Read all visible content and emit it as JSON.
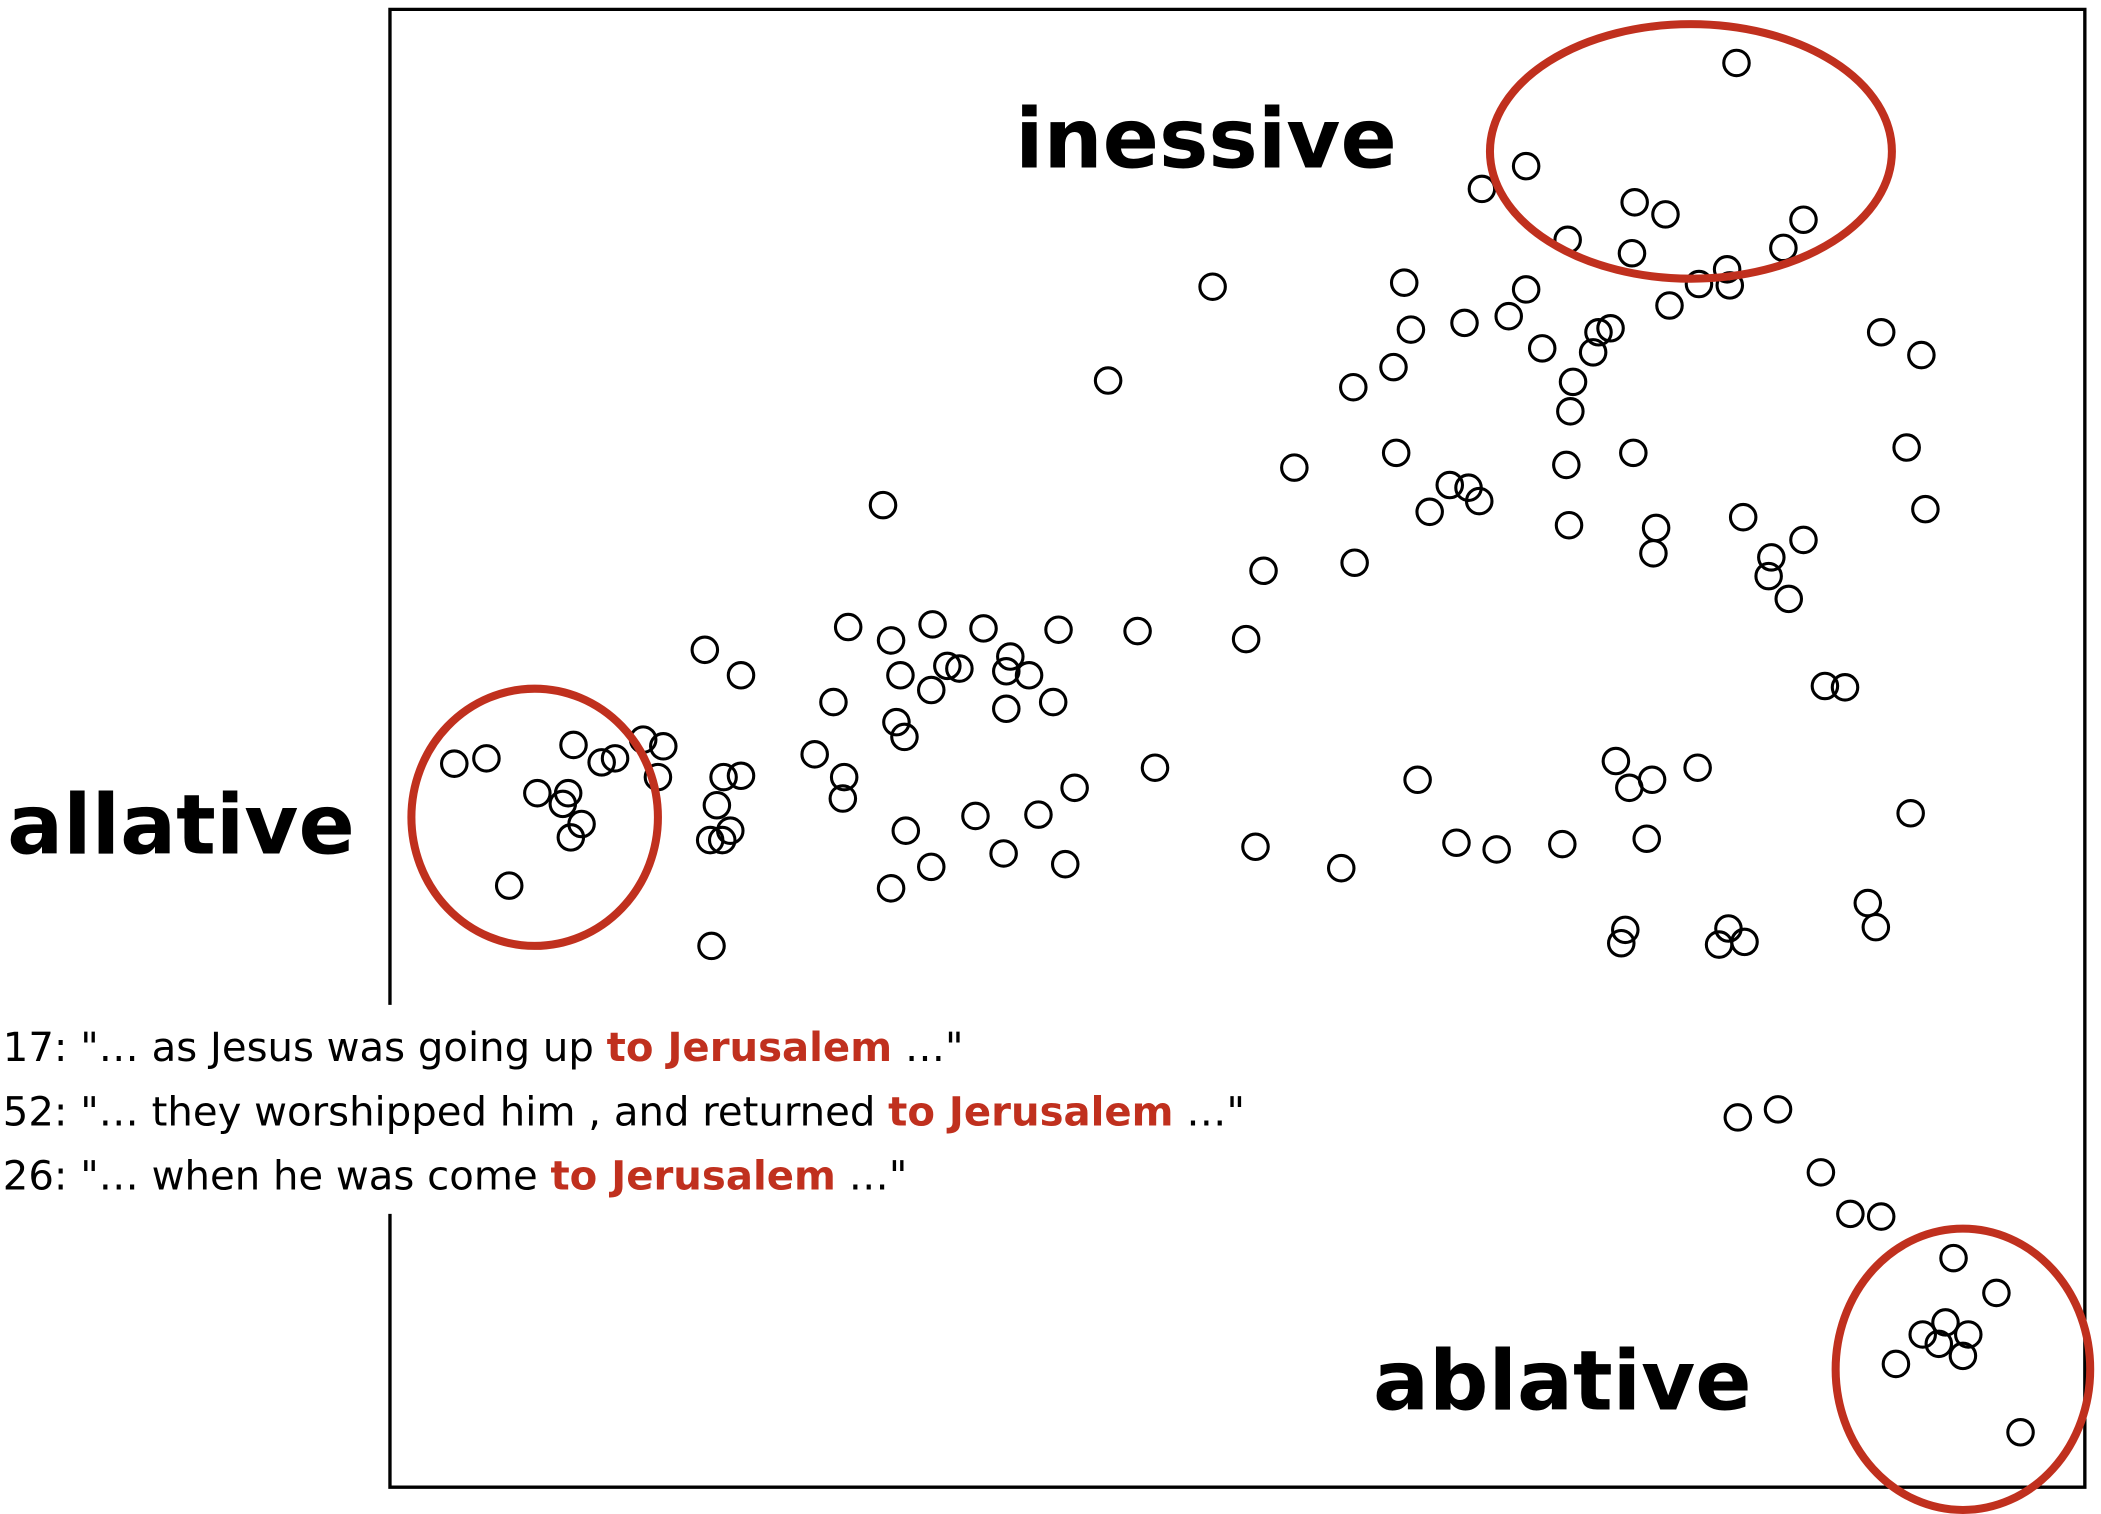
{
  "chart_data": {
    "type": "scatter",
    "xlim": [
      291,
      1556
    ],
    "ylim": [
      1110,
      7
    ],
    "x": [
      1296,
      1139,
      1106,
      1220,
      1243,
      1346,
      1170,
      1218,
      1331,
      1289,
      1268,
      1291,
      1246,
      905,
      1048,
      1139,
      1126,
      1053,
      1093,
      1151,
      1193,
      1202,
      1189,
      1040,
      1010,
      1174,
      1172,
      827,
      1404,
      1434,
      1423,
      1437,
      1042,
      966,
      1169,
      1219,
      1082,
      1096,
      1104,
      1067,
      1171,
      1236,
      1234,
      1301,
      1346,
      1322,
      1320,
      1335,
      1011,
      943,
      659,
      633,
      665,
      696,
      734,
      790,
      849,
      930,
      526,
      553,
      672,
      707,
      716,
      754,
      751,
      768,
      695,
      622,
      751,
      786,
      669,
      675,
      608,
      630,
      629,
      1362,
      1377,
      339,
      363,
      428,
      449,
      459,
      480,
      495,
      491,
      540,
      553,
      535,
      530,
      545,
      539,
      401,
      420,
      424,
      434,
      426,
      380,
      531,
      676,
      728,
      775,
      802,
      862,
      695,
      665,
      749,
      795,
      937,
      1001,
      1058,
      1087,
      1117,
      1166,
      1206,
      1216,
      1233,
      1267,
      1229,
      1426,
      1213,
      1210,
      1290,
      1283,
      1302,
      1394,
      1400,
      1297,
      1327,
      1359,
      1381,
      1404,
      1458,
      1490,
      1452,
      1435,
      1469,
      1447,
      1465,
      1415,
      1508
    ],
    "y": [
      47,
      124,
      141,
      151,
      160,
      164,
      179,
      189,
      185,
      201,
      212,
      213,
      228,
      214,
      211,
      216,
      236,
      246,
      241,
      260,
      248,
      245,
      263,
      274,
      289,
      285,
      307,
      284,
      248,
      265,
      334,
      380,
      338,
      349,
      347,
      338,
      362,
      364,
      374,
      382,
      392,
      394,
      413,
      386,
      403,
      416,
      430,
      447,
      420,
      426,
      377,
      468,
      478,
      466,
      469,
      470,
      471,
      477,
      485,
      504,
      504,
      497,
      499,
      490,
      501,
      504,
      515,
      524,
      529,
      524,
      539,
      550,
      563,
      580,
      596,
      512,
      513,
      570,
      566,
      556,
      569,
      566,
      552,
      557,
      580,
      580,
      579,
      601,
      627,
      620,
      627,
      592,
      600,
      592,
      615,
      625,
      661,
      706,
      620,
      609,
      608,
      588,
      573,
      647,
      663,
      637,
      645,
      632,
      648,
      582,
      629,
      634,
      630,
      568,
      588,
      582,
      573,
      626,
      607,
      694,
      704,
      693,
      705,
      703,
      674,
      692,
      834,
      828,
      875,
      906,
      908,
      939,
      965,
      987,
      996,
      996,
      1003,
      1012,
      1018,
      1069
    ],
    "labels": [
      "inessive",
      "allative",
      "ablative"
    ],
    "examples": [
      {
        "prefix": "17: \"… as Jesus was going up ",
        "highlight": "to Jerusalem",
        "suffix": " …\""
      },
      {
        "prefix": "52: \"… they worshipped him , and returned ",
        "highlight": "to Jerusalem",
        "suffix": " …\""
      },
      {
        "prefix": "26: \"… when he was come ",
        "highlight": "to Jerusalem",
        "suffix": " …\""
      }
    ]
  }
}
